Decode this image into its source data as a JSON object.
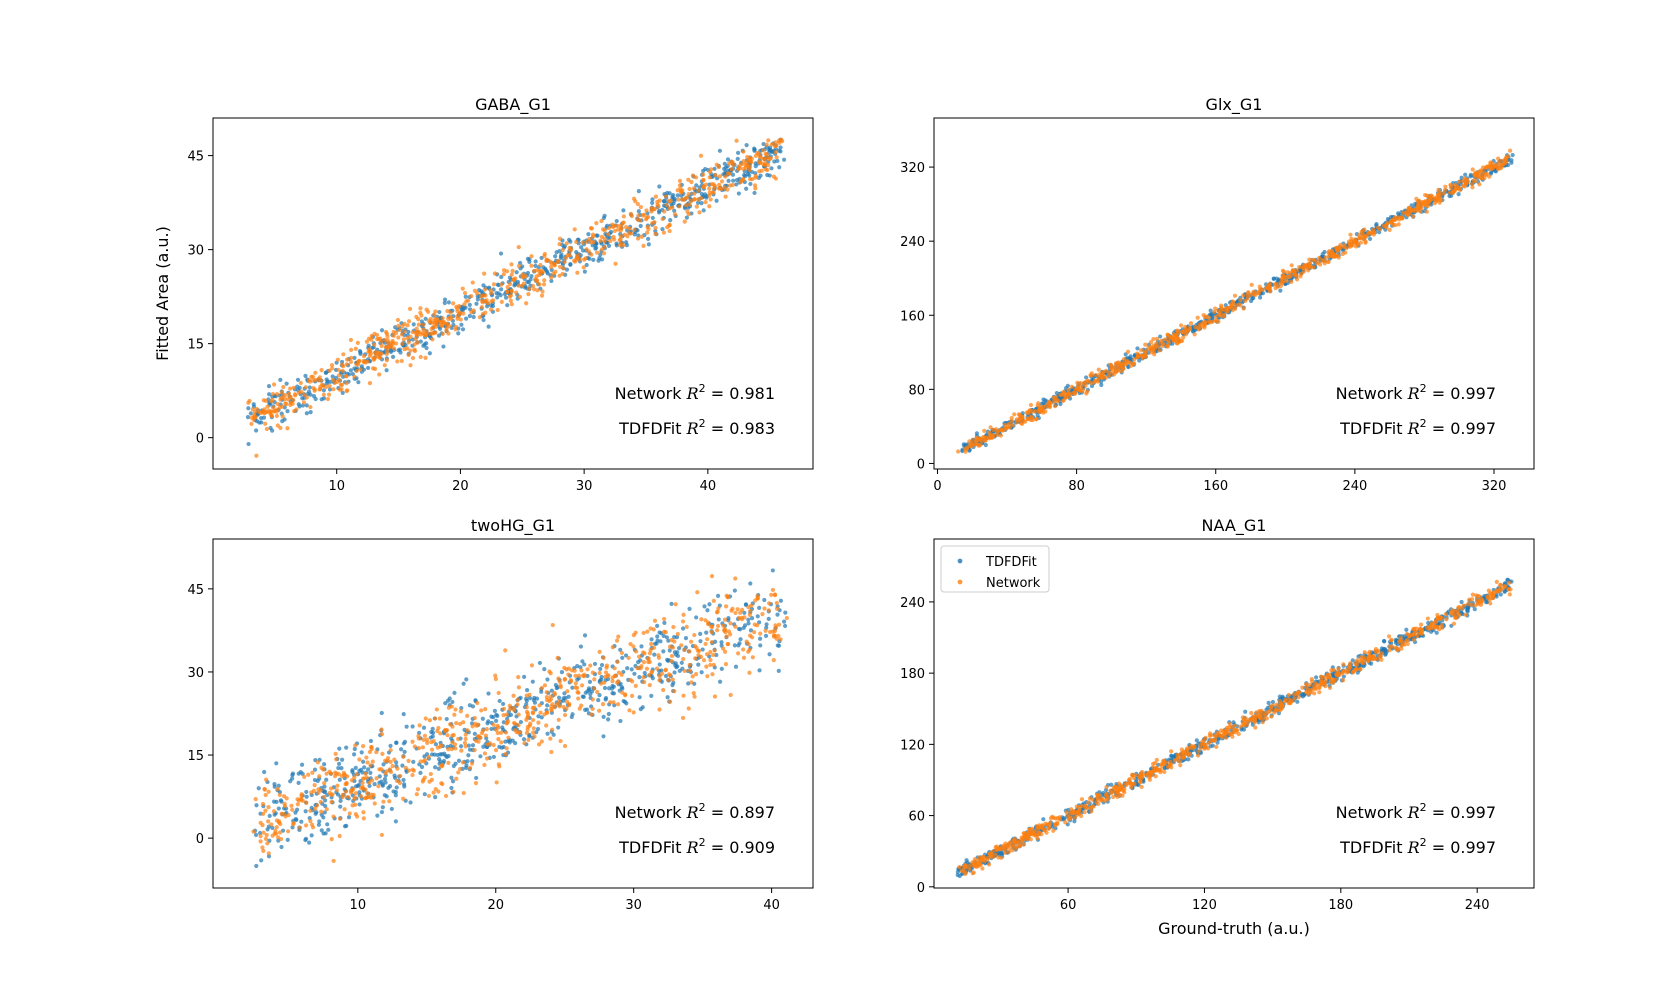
{
  "figure": {
    "ylabel": "Fitted Area (a.u.)",
    "xlabel": "Ground-truth (a.u.)"
  },
  "colors": {
    "tdfdfit": "#1f77b4",
    "network": "#ff7f0e"
  },
  "legend": {
    "location": "upper-left",
    "panel": "NAA_G1",
    "items": [
      "TDFDFit",
      "Network"
    ]
  },
  "chart_data": [
    {
      "type": "scatter",
      "title": "GABA_G1",
      "xlabel": "",
      "ylabel": "Fitted Area (a.u.)",
      "xlim": [
        0,
        48.5
      ],
      "ylim": [
        -5,
        51
      ],
      "xticks": [
        10,
        20,
        30,
        40
      ],
      "yticks": [
        0,
        15,
        30,
        45
      ],
      "grid": false,
      "series": [
        {
          "name": "TDFDFit",
          "x_range": [
            3,
            46
          ],
          "fit": [
            0,
            1
          ],
          "spread": 1.6,
          "points": 700
        },
        {
          "name": "Network",
          "x_range": [
            3,
            46
          ],
          "fit": [
            0,
            1
          ],
          "spread": 1.7,
          "points": 700
        }
      ],
      "annotations": [
        {
          "label": "Network",
          "r2": "= 0.981"
        },
        {
          "label": "TDFDFit",
          "r2": "= 0.983"
        }
      ]
    },
    {
      "type": "scatter",
      "title": "Glx_G1",
      "xlabel": "",
      "ylabel": "",
      "xlim": [
        -2,
        343
      ],
      "ylim": [
        -6,
        373
      ],
      "xticks": [
        0,
        80,
        160,
        240,
        320
      ],
      "yticks": [
        0,
        80,
        160,
        240,
        320
      ],
      "grid": false,
      "series": [
        {
          "name": "TDFDFit",
          "x_range": [
            15,
            330
          ],
          "fit": [
            0,
            1
          ],
          "spread": 3.5,
          "points": 700
        },
        {
          "name": "Network",
          "x_range": [
            15,
            330
          ],
          "fit": [
            0,
            1
          ],
          "spread": 3.7,
          "points": 700
        }
      ],
      "annotations": [
        {
          "label": "Network",
          "r2": "= 0.997"
        },
        {
          "label": "TDFDFit",
          "r2": "= 0.997"
        }
      ]
    },
    {
      "type": "scatter",
      "title": "twoHG_G1",
      "xlabel": "",
      "ylabel": "",
      "xlim": [
        -0.5,
        43
      ],
      "ylim": [
        -9,
        54
      ],
      "xticks": [
        10,
        20,
        30,
        40
      ],
      "yticks": [
        0,
        15,
        30,
        45
      ],
      "grid": false,
      "series": [
        {
          "name": "TDFDFit",
          "x_range": [
            2.5,
            41
          ],
          "fit": [
            0,
            1
          ],
          "spread": 3.8,
          "points": 700
        },
        {
          "name": "Network",
          "x_range": [
            2.5,
            41
          ],
          "fit": [
            0,
            1
          ],
          "spread": 4.0,
          "points": 700
        }
      ],
      "annotations": [
        {
          "label": "Network",
          "r2": "= 0.897"
        },
        {
          "label": "TDFDFit",
          "r2": "= 0.909"
        }
      ]
    },
    {
      "type": "scatter",
      "title": "NAA_G1",
      "xlabel": "Ground-truth (a.u.)",
      "ylabel": "",
      "xlim": [
        1,
        265
      ],
      "ylim": [
        -1,
        293
      ],
      "xticks": [
        60,
        120,
        180,
        240
      ],
      "yticks": [
        0,
        60,
        120,
        180,
        240
      ],
      "grid": false,
      "series": [
        {
          "name": "TDFDFit",
          "x_range": [
            12,
            255
          ],
          "fit": [
            0,
            1
          ],
          "spread": 3.0,
          "points": 700
        },
        {
          "name": "Network",
          "x_range": [
            12,
            255
          ],
          "fit": [
            0,
            1
          ],
          "spread": 3.2,
          "points": 700
        }
      ],
      "annotations": [
        {
          "label": "Network",
          "r2": "= 0.997"
        },
        {
          "label": "TDFDFit",
          "r2": "= 0.997"
        }
      ]
    }
  ]
}
